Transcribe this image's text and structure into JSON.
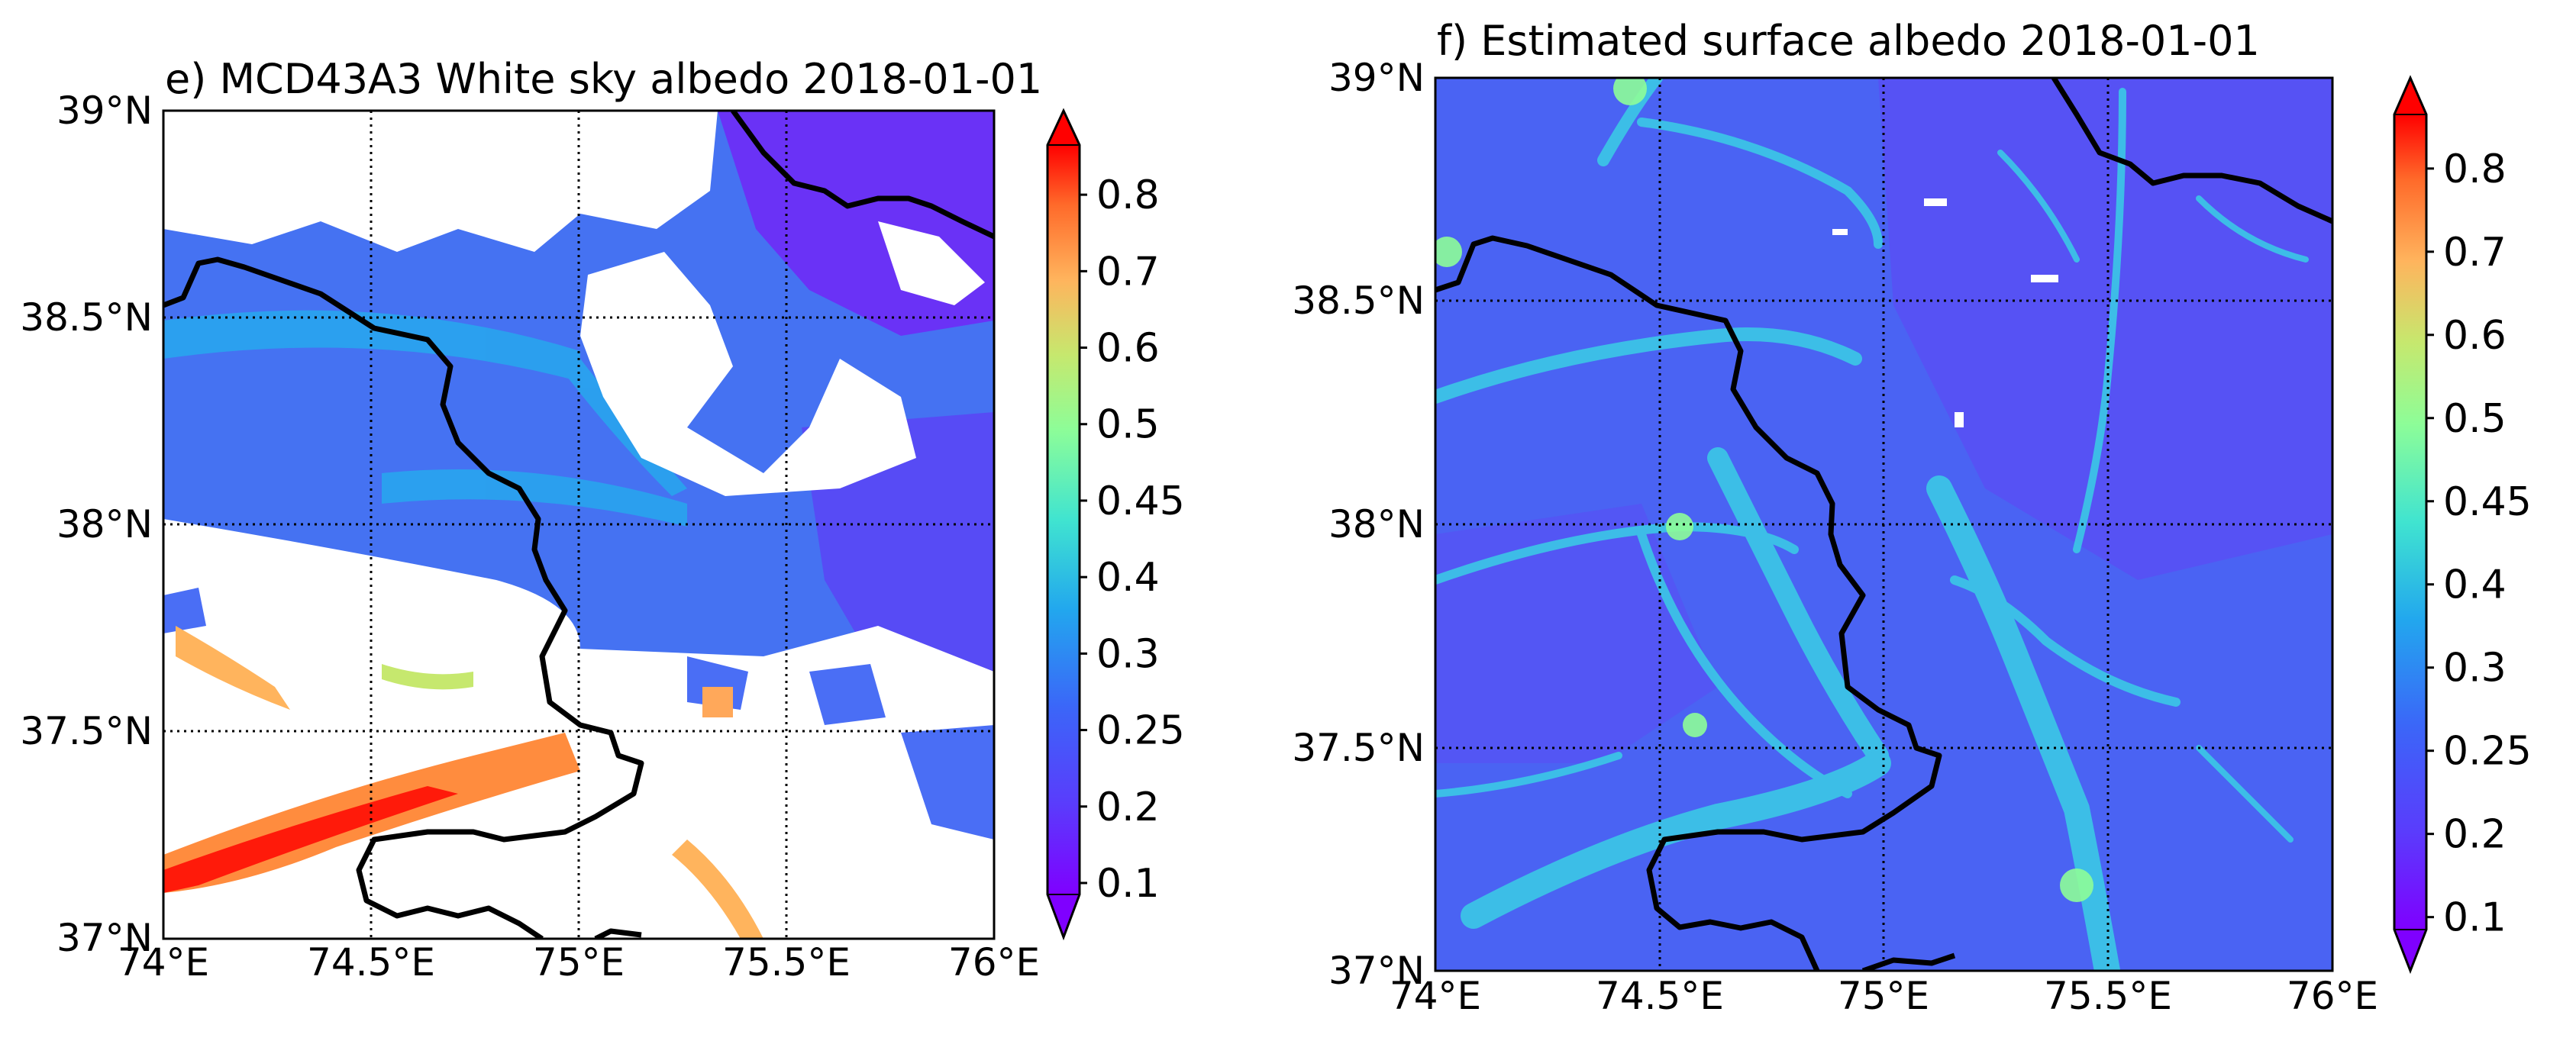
{
  "chart_data": [
    {
      "type": "heatmap",
      "title": "e) MCD43A3 White sky albedo 2018-01-01",
      "xlim": [
        74,
        76
      ],
      "ylim": [
        37,
        39
      ],
      "x_ticks": [
        74,
        74.5,
        75,
        75.5,
        76
      ],
      "y_ticks": [
        37,
        37.5,
        38,
        38.5,
        39
      ],
      "x_tick_labels": [
        "74°E",
        "74.5°E",
        "75°E",
        "75.5°E",
        "76°E"
      ],
      "y_tick_labels": [
        "37°N",
        "37.5°N",
        "38°N",
        "38.5°N",
        "39°N"
      ],
      "grid": "dotted",
      "colormap": "rainbow",
      "colorbar": {
        "extend": "both",
        "ticks": [
          0.1,
          0.2,
          0.25,
          0.3,
          0.4,
          0.45,
          0.5,
          0.6,
          0.7,
          0.8
        ],
        "tick_labels": [
          "0.1",
          "0.2",
          "0.25",
          "0.3",
          "0.4",
          "0.45",
          "0.5",
          "0.6",
          "0.7",
          "0.8"
        ]
      },
      "missing_data": "white (no retrieval)"
    },
    {
      "type": "heatmap",
      "title": "f) Estimated surface albedo 2018-01-01",
      "xlim": [
        74,
        76
      ],
      "ylim": [
        37,
        39
      ],
      "x_ticks": [
        74,
        74.5,
        75,
        75.5,
        76
      ],
      "y_ticks": [
        37,
        37.5,
        38,
        38.5,
        39
      ],
      "x_tick_labels": [
        "74°E",
        "74.5°E",
        "75°E",
        "75.5°E",
        "76°E"
      ],
      "y_tick_labels": [
        "37°N",
        "37.5°N",
        "38°N",
        "38.5°N",
        "39°N"
      ],
      "grid": "dotted",
      "colormap": "rainbow",
      "colorbar": {
        "extend": "both",
        "ticks": [
          0.1,
          0.2,
          0.25,
          0.3,
          0.4,
          0.45,
          0.5,
          0.6,
          0.7,
          0.8
        ],
        "tick_labels": [
          "0.1",
          "0.2",
          "0.25",
          "0.3",
          "0.4",
          "0.45",
          "0.5",
          "0.6",
          "0.7",
          "0.8"
        ]
      }
    }
  ],
  "colors": {
    "cmap_min": "#7f00ff",
    "cmap_low": "#3b66f8",
    "cmap_mid": "#40e4d0",
    "cmap_yellow": "#c6e86e",
    "cmap_orange": "#ff8c3e",
    "cmap_max": "#ff0000",
    "snow_blue": "#4a6ef5",
    "border": "#000000"
  }
}
